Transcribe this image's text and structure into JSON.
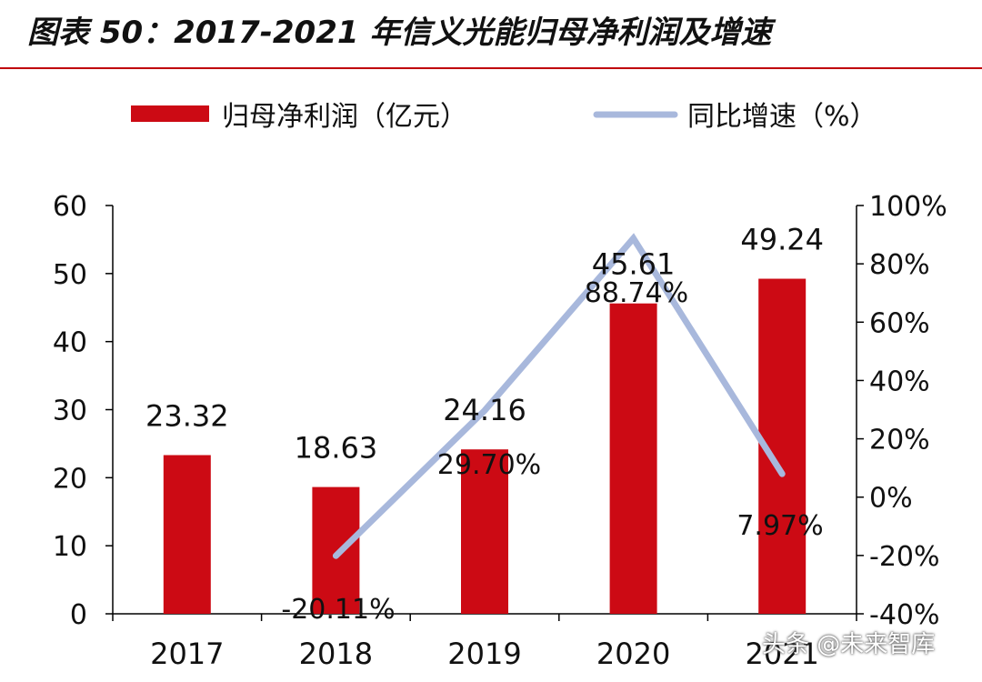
{
  "title": "图表 50：2017-2021 年信义光能归母净利润及增速",
  "watermark": "头条 @未来智库",
  "chart_data": {
    "type": "bar",
    "categories": [
      "2017",
      "2018",
      "2019",
      "2020",
      "2021"
    ],
    "series": [
      {
        "name": "归母净利润（亿元）",
        "kind": "bar",
        "axis": "left",
        "values": [
          23.32,
          18.63,
          24.16,
          45.61,
          49.24
        ],
        "labels": [
          "23.32",
          "18.63",
          "24.16",
          "45.61",
          "49.24"
        ]
      },
      {
        "name": "同比增速（%）",
        "kind": "line",
        "axis": "right",
        "values": [
          null,
          -20.11,
          29.7,
          88.74,
          7.97
        ],
        "labels": [
          "",
          "-20.11%",
          "29.70%",
          "88.74%",
          "7.97%"
        ]
      }
    ],
    "y_left": {
      "min": 0,
      "max": 60,
      "ticks": [
        "0",
        "10",
        "20",
        "30",
        "40",
        "50",
        "60"
      ]
    },
    "y_right": {
      "min": -40,
      "max": 100,
      "ticks": [
        "-40%",
        "-20%",
        "0%",
        "20%",
        "40%",
        "60%",
        "80%",
        "100%"
      ]
    },
    "legend_position": "top",
    "grid": false,
    "colors": {
      "bar": "#cc0a14",
      "line": "#a8b8dc",
      "axis": "#000000"
    }
  }
}
